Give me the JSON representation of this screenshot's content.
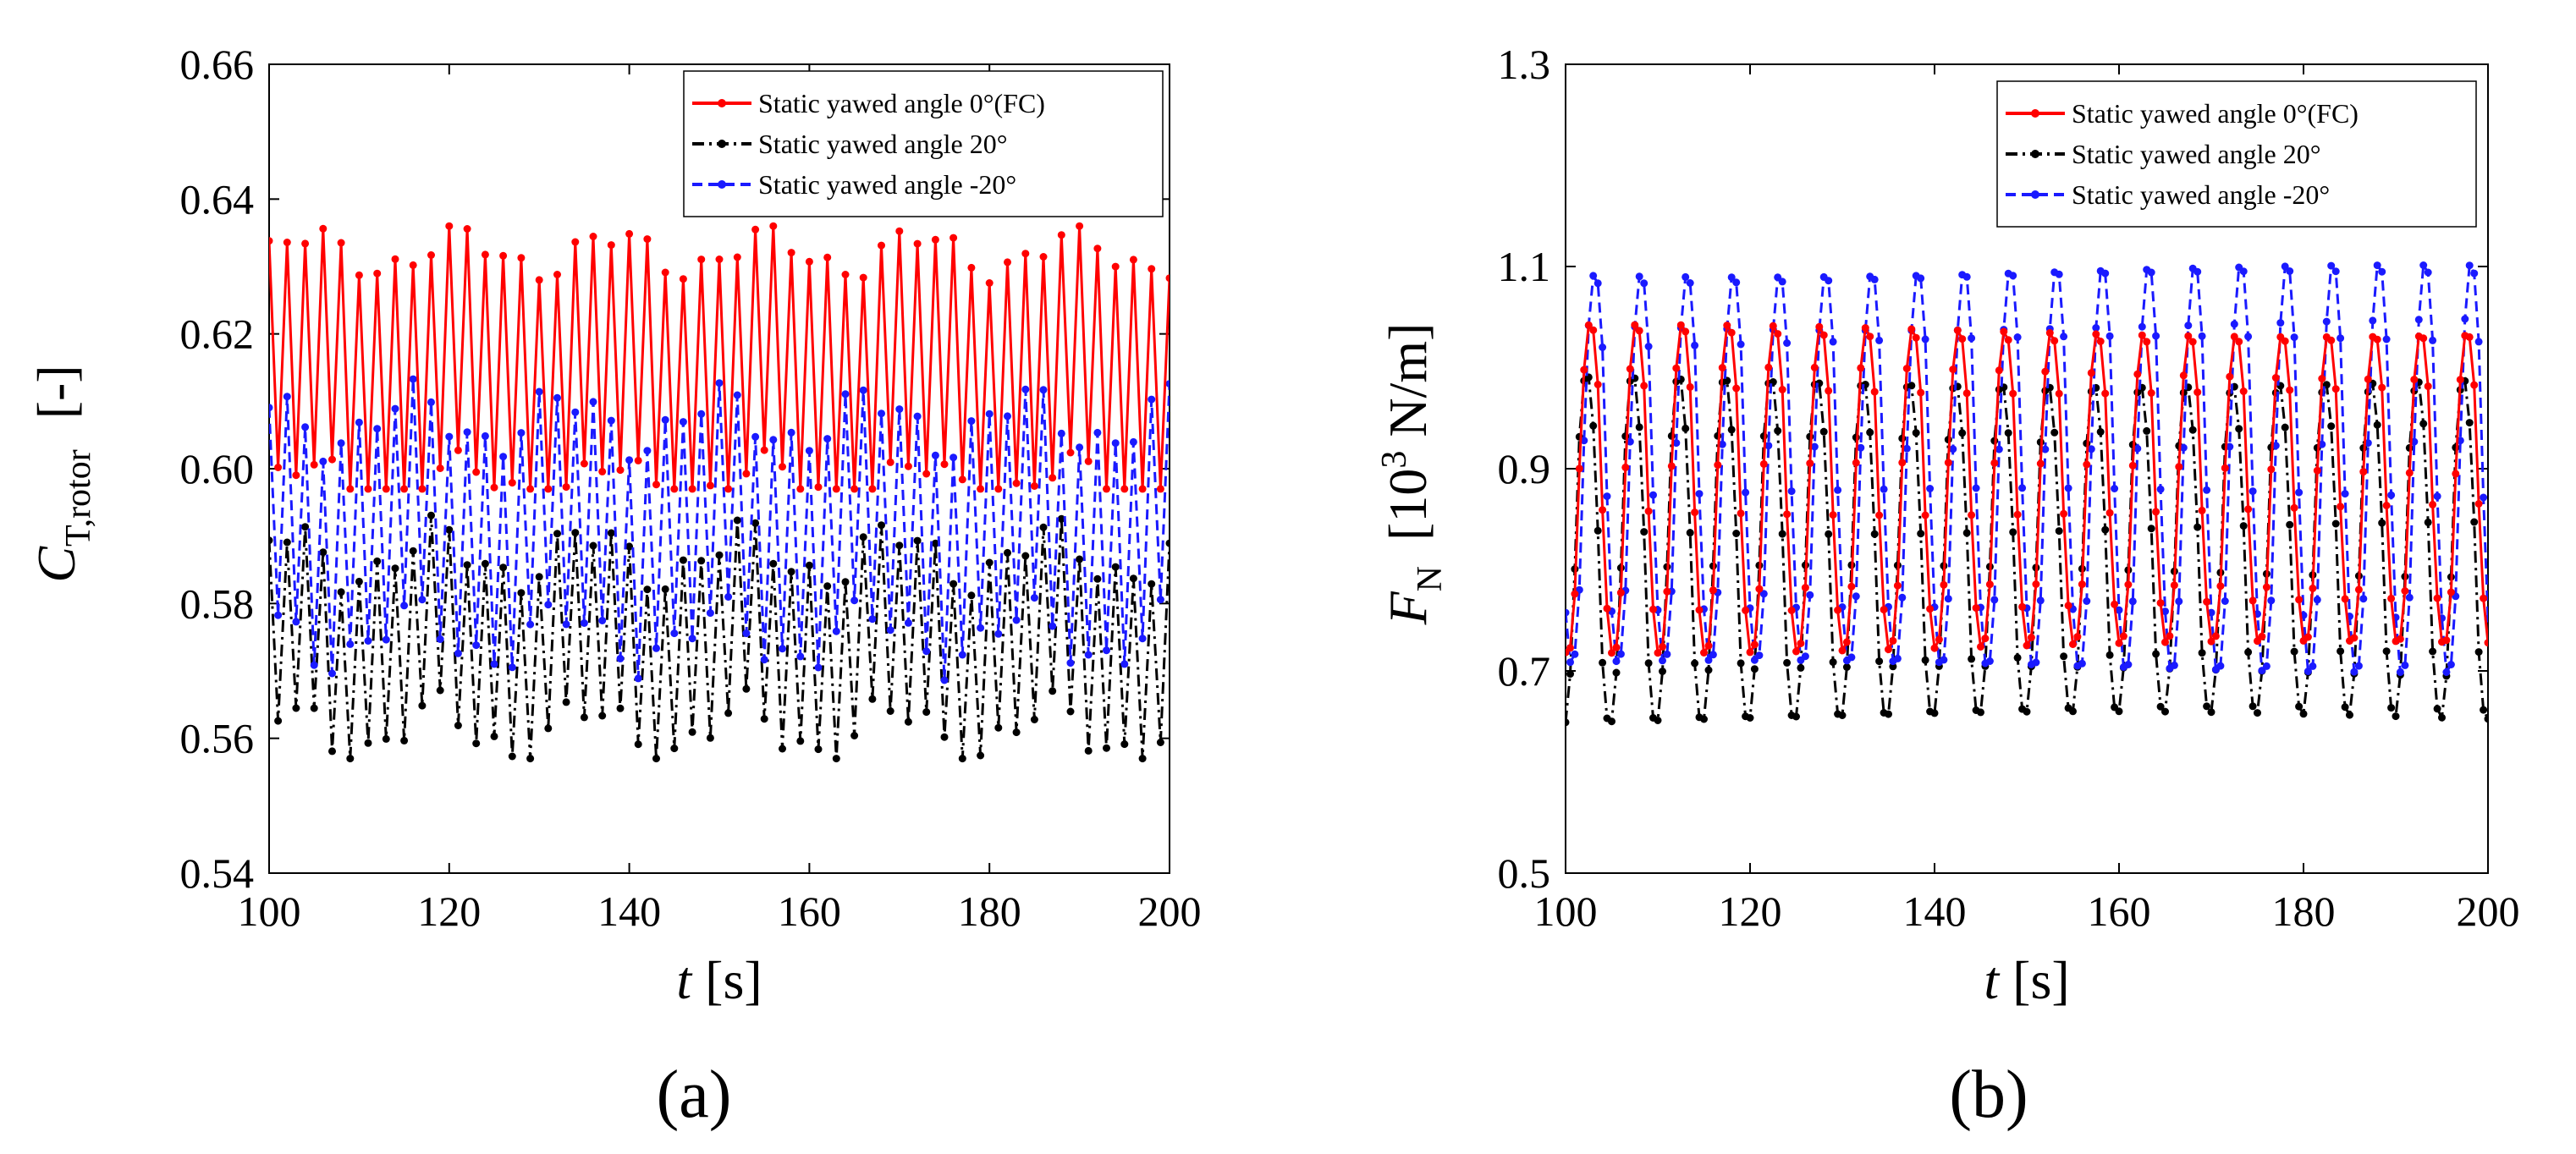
{
  "chart_data": [
    {
      "type": "line",
      "panel_label": "(a)",
      "xlabel_var": "t",
      "xlabel_unit": "[s]",
      "ylabel_main": "C",
      "ylabel_sub": "T,rotor",
      "ylabel_unit": "[-]",
      "xlim": [
        100,
        200
      ],
      "ylim": [
        0.54,
        0.66
      ],
      "xticks": [
        "100",
        "120",
        "140",
        "160",
        "180",
        "200"
      ],
      "yticks": [
        "0.54",
        "0.56",
        "0.58",
        "0.60",
        "0.62",
        "0.64",
        "0.66"
      ],
      "legend_position": "top-right",
      "sample_step_s": 1,
      "series": [
        {
          "name": "Static yawed angle 0°(FC)",
          "color": "#ff0000",
          "style": "solid",
          "marker": "dot",
          "mean": 0.615,
          "amplitude": 0.017,
          "spread": 0.003,
          "period_s": 2.0,
          "min": 0.597,
          "max": 0.636
        },
        {
          "name": "Static yawed angle 20°",
          "color": "#000000",
          "style": "dashdot",
          "marker": "dot",
          "mean": 0.574,
          "amplitude": 0.013,
          "spread": 0.004,
          "period_s": 2.0,
          "min": 0.557,
          "max": 0.597
        },
        {
          "name": "Static yawed angle -20°",
          "color": "#1a1aff",
          "style": "dashed",
          "marker": "dot",
          "mean": 0.591,
          "amplitude": 0.016,
          "spread": 0.004,
          "period_s": 2.0,
          "min": 0.566,
          "max": 0.616
        }
      ]
    },
    {
      "type": "line",
      "panel_label": "(b)",
      "xlabel_var": "t",
      "xlabel_unit": "[s]",
      "ylabel_main": "F",
      "ylabel_sub": "N",
      "ylabel_unit": "[10",
      "ylabel_exp": "3",
      "ylabel_unit2": " N/m]",
      "xlim": [
        100,
        200
      ],
      "ylim": [
        0.5,
        1.3
      ],
      "xticks": [
        "100",
        "120",
        "140",
        "160",
        "180",
        "200"
      ],
      "yticks": [
        "0.5",
        "0.7",
        "0.9",
        "1.1",
        "1.3"
      ],
      "legend_position": "top-right",
      "sample_step_s": 0.5,
      "series": [
        {
          "name": "Static yawed angle 0°(FC)",
          "color": "#ff0000",
          "style": "solid",
          "marker": "dot",
          "min": 0.72,
          "max": 1.04,
          "period_s": 5.0,
          "phase_s": 102.7
        },
        {
          "name": "Static yawed angle 20°",
          "color": "#000000",
          "style": "dashdot",
          "marker": "dot",
          "min": 0.65,
          "max": 0.99,
          "period_s": 5.0,
          "phase_s": 102.3
        },
        {
          "name": "Static yawed angle -20°",
          "color": "#1a1aff",
          "style": "dashed",
          "marker": "dot",
          "min": 0.7,
          "max": 1.1,
          "period_s": 5.0,
          "phase_s": 103.2
        }
      ]
    }
  ]
}
